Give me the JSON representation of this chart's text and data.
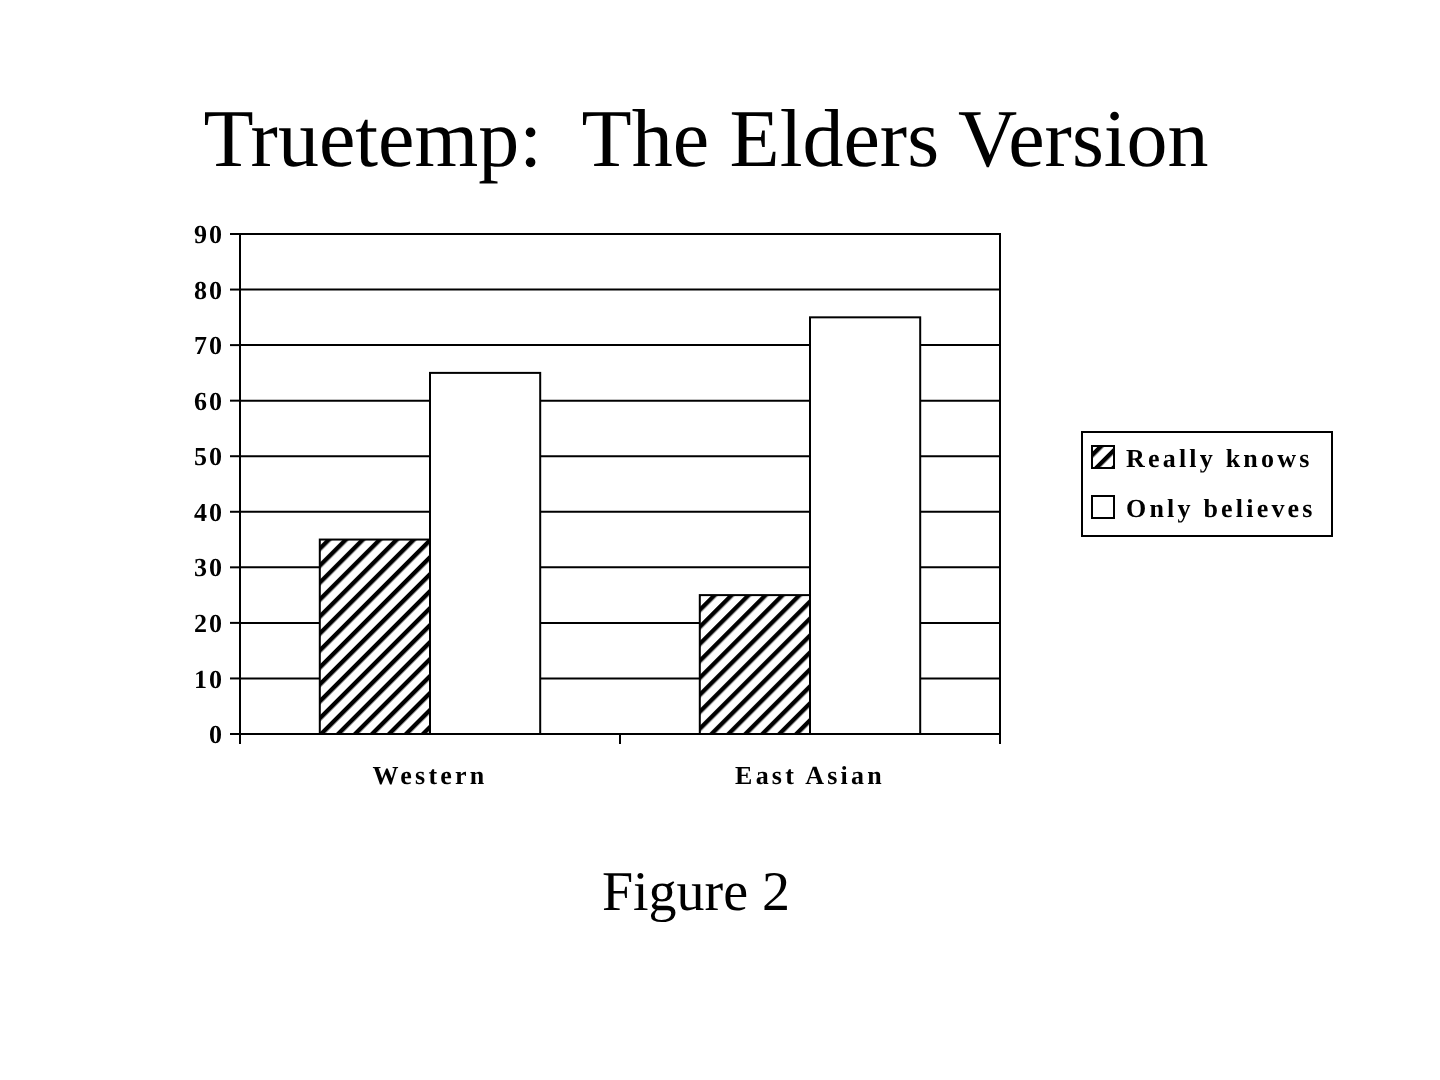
{
  "chart_data": {
    "type": "bar",
    "title": "Truetemp:  The Elders Version",
    "categories": [
      "Western",
      "East Asian"
    ],
    "series": [
      {
        "name": "Really knows",
        "color": "#000000",
        "values": [
          35,
          25
        ]
      },
      {
        "name": "Only believes",
        "color": "#ffffff",
        "values": [
          65,
          75
        ]
      }
    ],
    "ylim": [
      0,
      90
    ],
    "yticks": [
      0,
      10,
      20,
      30,
      40,
      50,
      60,
      70,
      80,
      90
    ],
    "grid": "y",
    "legend": "right",
    "annotations": [
      "Figure 2"
    ]
  }
}
